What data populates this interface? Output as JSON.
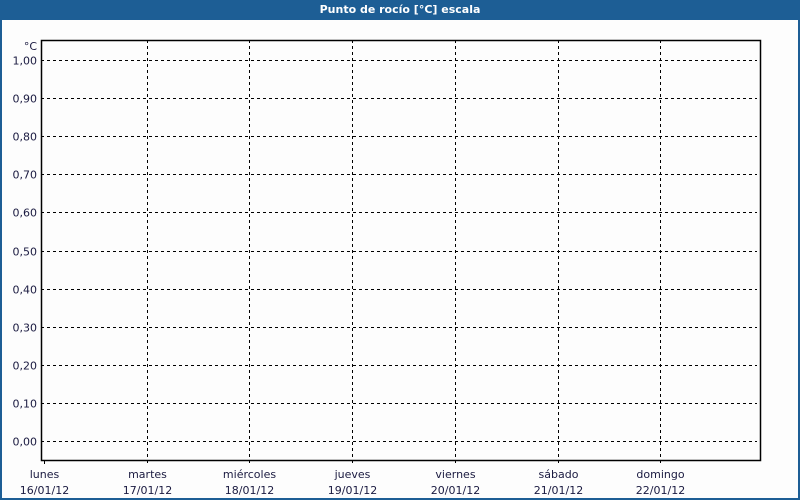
{
  "window": {
    "title": "Punto de rocío [°C] escala"
  },
  "chart_data": {
    "type": "line",
    "title": "Punto de rocío [°C] escala",
    "ylabel": "°C",
    "ylim": [
      0,
      1
    ],
    "yticks": [
      "0,00",
      "0,10",
      "0,20",
      "0,30",
      "0,40",
      "0,50",
      "0,60",
      "0,70",
      "0,80",
      "0,90",
      "1,00"
    ],
    "xticks": [
      {
        "day": "lunes",
        "date": "16/01/12"
      },
      {
        "day": "martes",
        "date": "17/01/12"
      },
      {
        "day": "miércoles",
        "date": "18/01/12"
      },
      {
        "day": "jueves",
        "date": "19/01/12"
      },
      {
        "day": "viernes",
        "date": "20/01/12"
      },
      {
        "day": "sábado",
        "date": "21/01/12"
      },
      {
        "day": "domingo",
        "date": "22/01/12"
      }
    ],
    "grid": true,
    "series": []
  },
  "colors": {
    "titlebar": "#1d5e95",
    "grid": "#000000",
    "text": "#1a1a40"
  }
}
